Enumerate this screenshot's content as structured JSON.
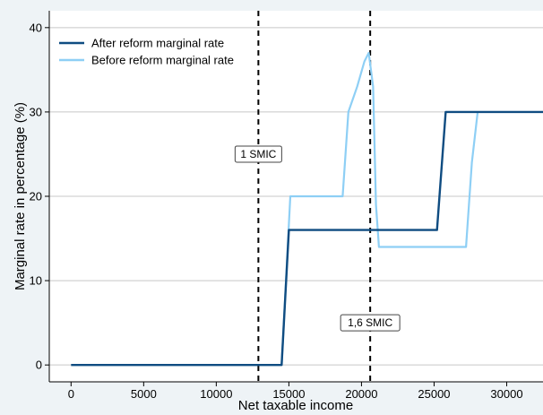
{
  "chart_data": {
    "type": "line",
    "xlabel": "Net taxable income",
    "ylabel": "Marginal rate in percentage (%)",
    "xlim": [
      -1500,
      32500
    ],
    "ylim": [
      -2,
      42
    ],
    "x_ticks": [
      0,
      5000,
      10000,
      15000,
      20000,
      25000,
      30000
    ],
    "y_ticks": [
      0,
      10,
      20,
      30,
      40
    ],
    "grid": "horizontal",
    "legend_position": "top-left",
    "series": [
      {
        "name": "After reform marginal rate",
        "color": "#0f4c81",
        "x": [
          0,
          14500,
          15000,
          25200,
          25800,
          32500
        ],
        "y": [
          0,
          0,
          16,
          16,
          30,
          30
        ]
      },
      {
        "name": "Before reform marginal rate",
        "color": "#8ecff5",
        "x": [
          14500,
          15100,
          18700,
          19100,
          19700,
          20200,
          20500,
          20800,
          21000,
          21200,
          21600,
          27200,
          27600,
          28000
        ],
        "y": [
          0,
          20,
          20,
          30,
          33,
          36,
          37,
          33,
          19,
          14,
          14,
          14,
          24,
          30
        ]
      }
    ],
    "vlines": [
      {
        "x": 12900,
        "label": "1 SMIC",
        "label_y": 25
      },
      {
        "x": 20600,
        "label": "1,6 SMIC",
        "label_y": 5
      }
    ]
  }
}
